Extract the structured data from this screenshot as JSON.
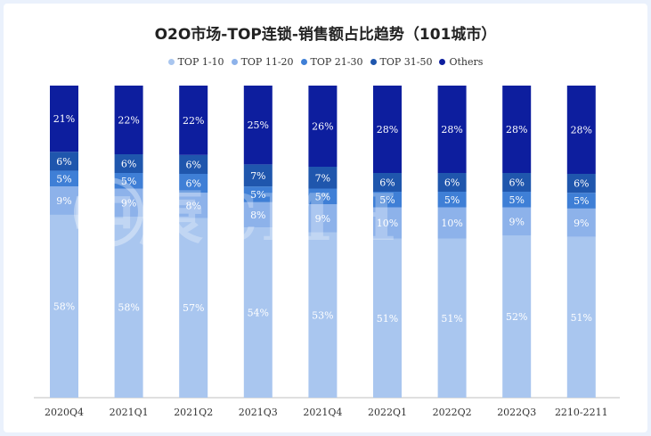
{
  "chart_data": {
    "type": "bar",
    "stacked": true,
    "title": "O2O市场-TOP连锁-销售额占比趋势（101城市）",
    "categories": [
      "2020Q4",
      "2021Q1",
      "2021Q2",
      "2021Q3",
      "2021Q4",
      "2022Q1",
      "2022Q2",
      "2022Q3",
      "2210-2211"
    ],
    "series": [
      {
        "name": "TOP 1-10",
        "color": "#a9c6ef",
        "values": [
          58,
          58,
          57,
          54,
          53,
          51,
          51,
          52,
          51
        ]
      },
      {
        "name": "TOP 11-20",
        "color": "#8db2ea",
        "values": [
          9,
          9,
          8,
          8,
          9,
          10,
          10,
          9,
          9
        ]
      },
      {
        "name": "TOP 21-30",
        "color": "#3f7fd6",
        "values": [
          5,
          5,
          6,
          5,
          5,
          5,
          5,
          5,
          5
        ]
      },
      {
        "name": "TOP 31-50",
        "color": "#1f56ad",
        "values": [
          6,
          6,
          6,
          7,
          7,
          6,
          6,
          6,
          6
        ]
      },
      {
        "name": "Others",
        "color": "#0d1e9e",
        "values": [
          21,
          22,
          22,
          25,
          26,
          28,
          28,
          28,
          28
        ]
      }
    ],
    "labels": [
      [
        "58%",
        "58%",
        "57%",
        "54%",
        "53%",
        "51%",
        "51%",
        "52%",
        "51%"
      ],
      [
        "9%",
        "9%",
        "8%",
        "8%",
        "9%",
        "10%",
        "10%",
        "9%",
        "9%"
      ],
      [
        "5%",
        "5%",
        "6%",
        "5%",
        "5%",
        "5%",
        "5%",
        "5%",
        "5%"
      ],
      [
        "6%",
        "6%",
        "6%",
        "7%",
        "7%",
        "6%",
        "6%",
        "6%",
        "6%"
      ],
      [
        "21%",
        "22%",
        "22%",
        "25%",
        "26%",
        "28%",
        "28%",
        "28%",
        "28%"
      ]
    ],
    "legend_position": "top",
    "grid": false
  },
  "watermark": "中康CMH"
}
